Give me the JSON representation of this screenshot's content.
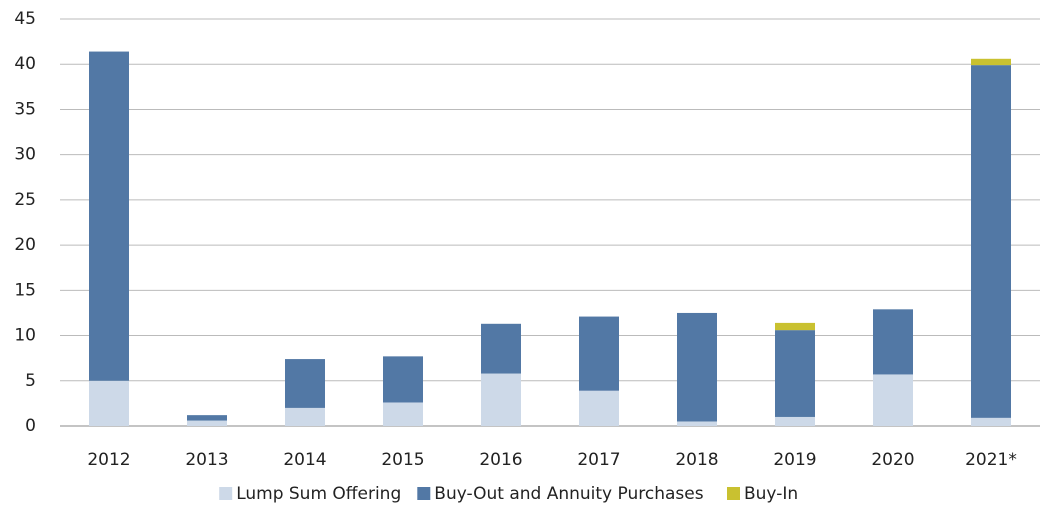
{
  "chart_data": {
    "type": "stacked_bar",
    "categories": [
      "2012",
      "2013",
      "2014",
      "2015",
      "2016",
      "2017",
      "2018",
      "2019",
      "2020",
      "2021*"
    ],
    "series": [
      {
        "name": "Lump Sum Offering",
        "color": "#cdd9e8",
        "values": [
          5.0,
          0.6,
          2.0,
          2.6,
          5.8,
          3.9,
          0.5,
          1.0,
          5.7,
          0.9
        ]
      },
      {
        "name": "Buy-Out and Annuity Purchases",
        "color": "#5278a5",
        "values": [
          36.4,
          0.6,
          5.4,
          5.1,
          5.5,
          8.2,
          12.0,
          9.6,
          7.2,
          39.0
        ]
      },
      {
        "name": "Buy-In",
        "color": "#c9c130",
        "values": [
          null,
          null,
          null,
          null,
          null,
          null,
          null,
          0.8,
          null,
          0.7
        ]
      }
    ],
    "ylim": [
      0,
      45
    ],
    "yticks": [
      0,
      5,
      10,
      15,
      20,
      25,
      30,
      35,
      40,
      45
    ],
    "grid": true,
    "legend": "bottom"
  }
}
